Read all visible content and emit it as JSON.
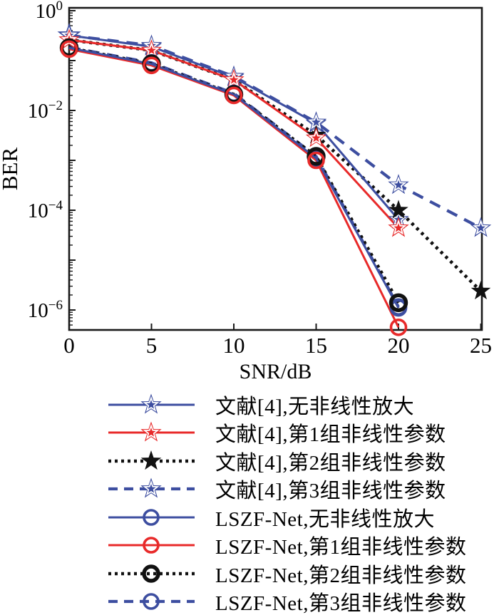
{
  "figure": {
    "kind": "semilog-line-plot",
    "title": ""
  },
  "axes": {
    "xlabel": "SNR/dB",
    "ylabel": "BER",
    "x_tick_labels": [
      "0",
      "5",
      "10",
      "15",
      "20",
      "25"
    ],
    "y_tick_labels": [
      {
        "base": "10",
        "exp": "0"
      },
      {
        "base": "10",
        "exp": "−2"
      },
      {
        "base": "10",
        "exp": "−4"
      },
      {
        "base": "10",
        "exp": "−6"
      }
    ]
  },
  "colors": {
    "blue": "#3D4EA0",
    "red": "#E82A2A",
    "black": "#111111",
    "frame": "#1A1A1A"
  },
  "chart_data": {
    "type": "line",
    "title": "",
    "xlabel": "SNR/dB",
    "ylabel": "BER",
    "x_axis": {
      "min": 0,
      "max": 25,
      "ticks": [
        0,
        5,
        10,
        15,
        20,
        25
      ]
    },
    "y_axis": {
      "scale": "log",
      "min": 4e-07,
      "max": 1.0,
      "labeled_decades": [
        0,
        -2,
        -4,
        -6
      ]
    },
    "grid": false,
    "legend_position": "below",
    "series": [
      {
        "id": "ref4-no-nl",
        "label": "文献[4],无非线性放大",
        "color_key": "blue",
        "line": "solid",
        "marker": "pentagram-open",
        "x": [
          0,
          5,
          10,
          15,
          20
        ],
        "y": [
          0.32,
          0.19,
          0.046,
          0.0055,
          6.5e-05
        ]
      },
      {
        "id": "ref4-set1",
        "label": "文献[4],第1组非线性参数",
        "color_key": "red",
        "line": "solid",
        "marker": "pentagram-open",
        "x": [
          0,
          5,
          10,
          15,
          20
        ],
        "y": [
          0.26,
          0.16,
          0.041,
          0.0028,
          4.4e-05
        ]
      },
      {
        "id": "ref4-set2",
        "label": "文献[4],第2组非线性参数",
        "color_key": "black",
        "line": "dotted",
        "marker": "pentagram-filled",
        "x": [
          0,
          5,
          10,
          15,
          20,
          25
        ],
        "y": [
          0.26,
          0.16,
          0.041,
          0.0032,
          0.0001,
          2.4e-06
        ]
      },
      {
        "id": "ref4-set3",
        "label": "文献[4],第3组非线性参数",
        "color_key": "blue",
        "line": "dashed",
        "marker": "pentagram-open",
        "x": [
          0,
          5,
          10,
          15,
          20,
          25
        ],
        "y": [
          0.32,
          0.2,
          0.048,
          0.0058,
          0.00032,
          4.4e-05
        ]
      },
      {
        "id": "lszf-no-nl",
        "label": "LSZF-Net,无非线性放大",
        "color_key": "blue",
        "line": "solid",
        "marker": "circle-open",
        "x": [
          0,
          5,
          10,
          15,
          20
        ],
        "y": [
          0.18,
          0.085,
          0.021,
          0.0011,
          1.1e-06
        ]
      },
      {
        "id": "lszf-set1",
        "label": "LSZF-Net,第1组非线性参数",
        "color_key": "red",
        "line": "solid",
        "marker": "circle-open",
        "x": [
          0,
          5,
          10,
          15,
          20
        ],
        "y": [
          0.17,
          0.08,
          0.02,
          0.001,
          4.5e-07
        ]
      },
      {
        "id": "lszf-set2",
        "label": "LSZF-Net,第2组非线性参数",
        "color_key": "black",
        "line": "dotted",
        "marker": "circle-open-bold",
        "x": [
          0,
          5,
          10,
          15,
          20
        ],
        "y": [
          0.18,
          0.086,
          0.021,
          0.0012,
          1.4e-06
        ]
      },
      {
        "id": "lszf-set3",
        "label": "LSZF-Net,第3组非线性参数",
        "color_key": "blue",
        "line": "dashed",
        "marker": "circle-open",
        "x": [
          0,
          5,
          10,
          15,
          20
        ],
        "y": [
          0.185,
          0.09,
          0.022,
          0.0012,
          1.15e-06
        ]
      }
    ]
  }
}
